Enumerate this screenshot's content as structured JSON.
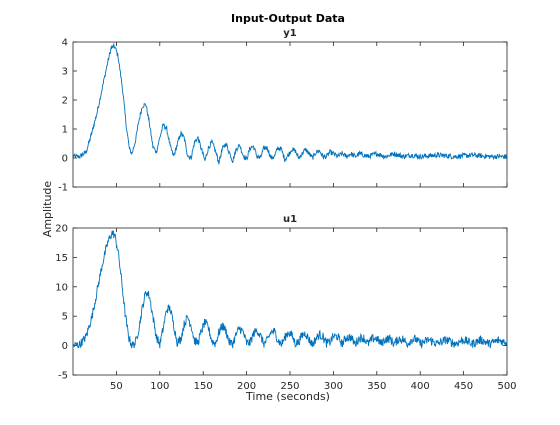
{
  "chart_data": {
    "type": "line",
    "title": "Input-Output Data",
    "ylabel": "Amplitude",
    "xlabel": "Time (seconds)",
    "line_color": "#0072bd",
    "axis_color": "#262626",
    "xlim": [
      0,
      500
    ],
    "x_ticks": [
      50,
      100,
      150,
      200,
      250,
      300,
      350,
      400,
      450,
      500
    ],
    "subplots": [
      {
        "name": "y1",
        "title": "y1",
        "ylim": [
          -1,
          4
        ],
        "y_ticks": [
          -1,
          0,
          1,
          2,
          3,
          4
        ],
        "noise_level": 0.07,
        "envelope_points": [
          [
            0,
            0.05
          ],
          [
            8,
            0.05
          ],
          [
            15,
            0.2
          ],
          [
            22,
            0.9
          ],
          [
            28,
            1.6
          ],
          [
            35,
            2.6
          ],
          [
            40,
            3.3
          ],
          [
            44,
            3.8
          ],
          [
            48,
            3.85
          ],
          [
            52,
            3.5
          ],
          [
            57,
            2.4
          ],
          [
            61,
            1.2
          ],
          [
            65,
            0.3
          ],
          [
            68,
            0.15
          ],
          [
            72,
            0.6
          ],
          [
            76,
            1.3
          ],
          [
            80,
            1.8
          ],
          [
            84,
            1.85
          ],
          [
            88,
            1.2
          ],
          [
            92,
            0.4
          ],
          [
            96,
            0.2
          ],
          [
            100,
            0.7
          ],
          [
            104,
            1.15
          ],
          [
            108,
            1.0
          ],
          [
            112,
            0.4
          ],
          [
            116,
            0.05
          ],
          [
            120,
            0.45
          ],
          [
            124,
            0.85
          ],
          [
            128,
            0.7
          ],
          [
            132,
            0.1
          ],
          [
            136,
            0.0
          ],
          [
            140,
            0.55
          ],
          [
            144,
            0.7
          ],
          [
            148,
            0.3
          ],
          [
            152,
            -0.1
          ],
          [
            156,
            0.35
          ],
          [
            160,
            0.55
          ],
          [
            164,
            0.25
          ],
          [
            168,
            -0.15
          ],
          [
            172,
            0.3
          ],
          [
            176,
            0.5
          ],
          [
            180,
            0.2
          ],
          [
            184,
            -0.1
          ],
          [
            188,
            0.3
          ],
          [
            192,
            0.45
          ],
          [
            196,
            0.1
          ],
          [
            200,
            -0.05
          ],
          [
            204,
            0.35
          ],
          [
            208,
            0.4
          ],
          [
            212,
            0.05
          ],
          [
            216,
            0.0
          ],
          [
            220,
            0.35
          ],
          [
            224,
            0.35
          ],
          [
            228,
            0.0
          ],
          [
            232,
            0.05
          ],
          [
            236,
            0.35
          ],
          [
            240,
            0.3
          ],
          [
            244,
            -0.05
          ],
          [
            248,
            0.1
          ],
          [
            252,
            0.3
          ],
          [
            256,
            0.25
          ],
          [
            260,
            0.0
          ],
          [
            264,
            0.15
          ],
          [
            268,
            0.3
          ],
          [
            272,
            0.15
          ],
          [
            276,
            0.0
          ],
          [
            280,
            0.2
          ],
          [
            284,
            0.25
          ],
          [
            288,
            0.05
          ],
          [
            292,
            0.05
          ],
          [
            296,
            0.2
          ],
          [
            300,
            0.15
          ],
          [
            305,
            0.05
          ],
          [
            310,
            0.15
          ],
          [
            315,
            0.05
          ],
          [
            320,
            0.15
          ],
          [
            325,
            0.05
          ],
          [
            330,
            0.15
          ],
          [
            340,
            0.05
          ],
          [
            350,
            0.15
          ],
          [
            360,
            0.05
          ],
          [
            370,
            0.15
          ],
          [
            380,
            0.05
          ],
          [
            390,
            0.1
          ],
          [
            400,
            0.05
          ],
          [
            420,
            0.1
          ],
          [
            440,
            0.05
          ],
          [
            460,
            0.1
          ],
          [
            480,
            0.05
          ],
          [
            500,
            0.05
          ]
        ]
      },
      {
        "name": "u1",
        "title": "u1",
        "ylim": [
          -5,
          20
        ],
        "y_ticks": [
          -5,
          0,
          5,
          10,
          15,
          20
        ],
        "noise_level": 0.12,
        "envelope_points": [
          [
            0,
            0.0
          ],
          [
            8,
            0.2
          ],
          [
            15,
            1.5
          ],
          [
            22,
            5.0
          ],
          [
            28,
            9.5
          ],
          [
            34,
            14.0
          ],
          [
            40,
            17.5
          ],
          [
            45,
            19.2
          ],
          [
            48,
            18.8
          ],
          [
            52,
            16.0
          ],
          [
            56,
            11.0
          ],
          [
            60,
            5.5
          ],
          [
            64,
            1.5
          ],
          [
            68,
            0.0
          ],
          [
            72,
            0.5
          ],
          [
            76,
            3.0
          ],
          [
            80,
            6.5
          ],
          [
            84,
            9.2
          ],
          [
            88,
            8.5
          ],
          [
            92,
            5.0
          ],
          [
            96,
            1.5
          ],
          [
            100,
            0.2
          ],
          [
            104,
            3.0
          ],
          [
            108,
            6.2
          ],
          [
            112,
            6.3
          ],
          [
            116,
            3.5
          ],
          [
            120,
            0.6
          ],
          [
            124,
            1.0
          ],
          [
            128,
            3.6
          ],
          [
            132,
            4.9
          ],
          [
            136,
            3.5
          ],
          [
            140,
            0.8
          ],
          [
            144,
            0.5
          ],
          [
            148,
            2.5
          ],
          [
            152,
            4.0
          ],
          [
            156,
            3.0
          ],
          [
            160,
            0.8
          ],
          [
            164,
            0.3
          ],
          [
            168,
            2.2
          ],
          [
            172,
            3.4
          ],
          [
            176,
            2.6
          ],
          [
            180,
            0.6
          ],
          [
            184,
            0.3
          ],
          [
            188,
            1.9
          ],
          [
            192,
            3.0
          ],
          [
            196,
            2.3
          ],
          [
            200,
            0.4
          ],
          [
            204,
            0.5
          ],
          [
            208,
            2.0
          ],
          [
            212,
            2.7
          ],
          [
            216,
            1.6
          ],
          [
            220,
            0.3
          ],
          [
            224,
            0.9
          ],
          [
            228,
            2.3
          ],
          [
            232,
            2.4
          ],
          [
            236,
            1.0
          ],
          [
            240,
            0.2
          ],
          [
            244,
            1.3
          ],
          [
            248,
            2.3
          ],
          [
            252,
            1.8
          ],
          [
            256,
            0.4
          ],
          [
            260,
            0.6
          ],
          [
            264,
            1.8
          ],
          [
            268,
            2.1
          ],
          [
            272,
            1.0
          ],
          [
            276,
            0.2
          ],
          [
            280,
            1.2
          ],
          [
            284,
            1.9
          ],
          [
            288,
            1.5
          ],
          [
            292,
            0.4
          ],
          [
            296,
            0.6
          ],
          [
            300,
            1.6
          ],
          [
            305,
            1.5
          ],
          [
            310,
            0.3
          ],
          [
            315,
            1.4
          ],
          [
            320,
            1.4
          ],
          [
            325,
            0.3
          ],
          [
            330,
            1.3
          ],
          [
            335,
            1.3
          ],
          [
            340,
            0.3
          ],
          [
            345,
            1.2
          ],
          [
            350,
            1.2
          ],
          [
            355,
            0.3
          ],
          [
            360,
            1.1
          ],
          [
            365,
            1.2
          ],
          [
            370,
            0.3
          ],
          [
            375,
            1.1
          ],
          [
            380,
            1.1
          ],
          [
            385,
            0.3
          ],
          [
            390,
            1.0
          ],
          [
            395,
            1.1
          ],
          [
            400,
            0.3
          ],
          [
            410,
            1.0
          ],
          [
            420,
            0.3
          ],
          [
            430,
            1.0
          ],
          [
            440,
            0.3
          ],
          [
            450,
            1.0
          ],
          [
            460,
            0.3
          ],
          [
            470,
            1.0
          ],
          [
            480,
            0.3
          ],
          [
            490,
            0.9
          ],
          [
            500,
            0.5
          ]
        ]
      }
    ]
  }
}
